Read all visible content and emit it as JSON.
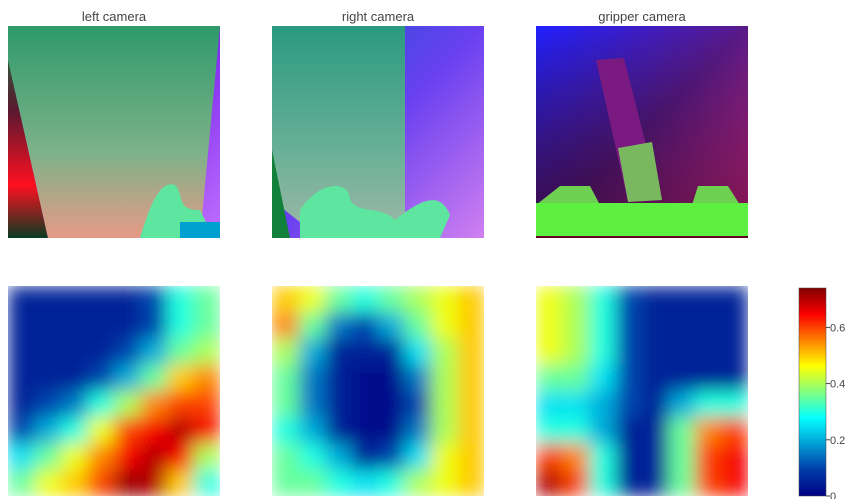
{
  "chart_data": [
    {
      "type": "heatmap",
      "title": "left camera",
      "colorscale": "Jet",
      "z": [
        [
          0.05,
          0.05,
          0.05,
          0.05,
          0.05,
          0.1,
          0.3,
          0.35
        ],
        [
          0.05,
          0.05,
          0.05,
          0.05,
          0.05,
          0.1,
          0.3,
          0.35
        ],
        [
          0.05,
          0.05,
          0.05,
          0.05,
          0.1,
          0.2,
          0.35,
          0.4
        ],
        [
          0.05,
          0.05,
          0.05,
          0.1,
          0.2,
          0.35,
          0.5,
          0.55
        ],
        [
          0.05,
          0.1,
          0.15,
          0.3,
          0.4,
          0.55,
          0.6,
          0.6
        ],
        [
          0.1,
          0.2,
          0.3,
          0.45,
          0.6,
          0.65,
          0.7,
          0.65
        ],
        [
          0.25,
          0.35,
          0.45,
          0.55,
          0.65,
          0.7,
          0.65,
          0.4
        ],
        [
          0.35,
          0.45,
          0.5,
          0.6,
          0.72,
          0.7,
          0.5,
          0.3
        ]
      ]
    },
    {
      "type": "heatmap",
      "title": "right camera",
      "colorscale": "Jet",
      "z": [
        [
          0.5,
          0.45,
          0.35,
          0.3,
          0.35,
          0.4,
          0.45,
          0.5
        ],
        [
          0.55,
          0.35,
          0.15,
          0.1,
          0.2,
          0.35,
          0.45,
          0.5
        ],
        [
          0.4,
          0.2,
          0.05,
          0.05,
          0.05,
          0.25,
          0.4,
          0.5
        ],
        [
          0.35,
          0.15,
          0.05,
          0.02,
          0.02,
          0.15,
          0.4,
          0.5
        ],
        [
          0.35,
          0.15,
          0.05,
          0.02,
          0.02,
          0.1,
          0.4,
          0.5
        ],
        [
          0.3,
          0.2,
          0.05,
          0.02,
          0.02,
          0.15,
          0.4,
          0.5
        ],
        [
          0.35,
          0.3,
          0.2,
          0.05,
          0.1,
          0.25,
          0.45,
          0.5
        ],
        [
          0.35,
          0.35,
          0.3,
          0.25,
          0.3,
          0.4,
          0.45,
          0.5
        ]
      ]
    },
    {
      "type": "heatmap",
      "title": "gripper camera",
      "colorscale": "Jet",
      "z": [
        [
          0.45,
          0.4,
          0.3,
          0.1,
          0.05,
          0.05,
          0.05,
          0.05
        ],
        [
          0.45,
          0.4,
          0.3,
          0.1,
          0.05,
          0.05,
          0.05,
          0.05
        ],
        [
          0.45,
          0.4,
          0.3,
          0.1,
          0.05,
          0.05,
          0.05,
          0.05
        ],
        [
          0.35,
          0.35,
          0.25,
          0.1,
          0.05,
          0.05,
          0.05,
          0.05
        ],
        [
          0.25,
          0.25,
          0.2,
          0.1,
          0.05,
          0.2,
          0.3,
          0.3
        ],
        [
          0.3,
          0.3,
          0.2,
          0.05,
          0.05,
          0.35,
          0.55,
          0.6
        ],
        [
          0.6,
          0.55,
          0.3,
          0.05,
          0.05,
          0.35,
          0.6,
          0.65
        ],
        [
          0.7,
          0.6,
          0.3,
          0.05,
          0.05,
          0.35,
          0.6,
          0.65
        ]
      ],
      "colorbar": {
        "zlim": [
          0,
          0.74
        ],
        "ticks": [
          0,
          0.2,
          0.4,
          0.6
        ]
      }
    }
  ]
}
